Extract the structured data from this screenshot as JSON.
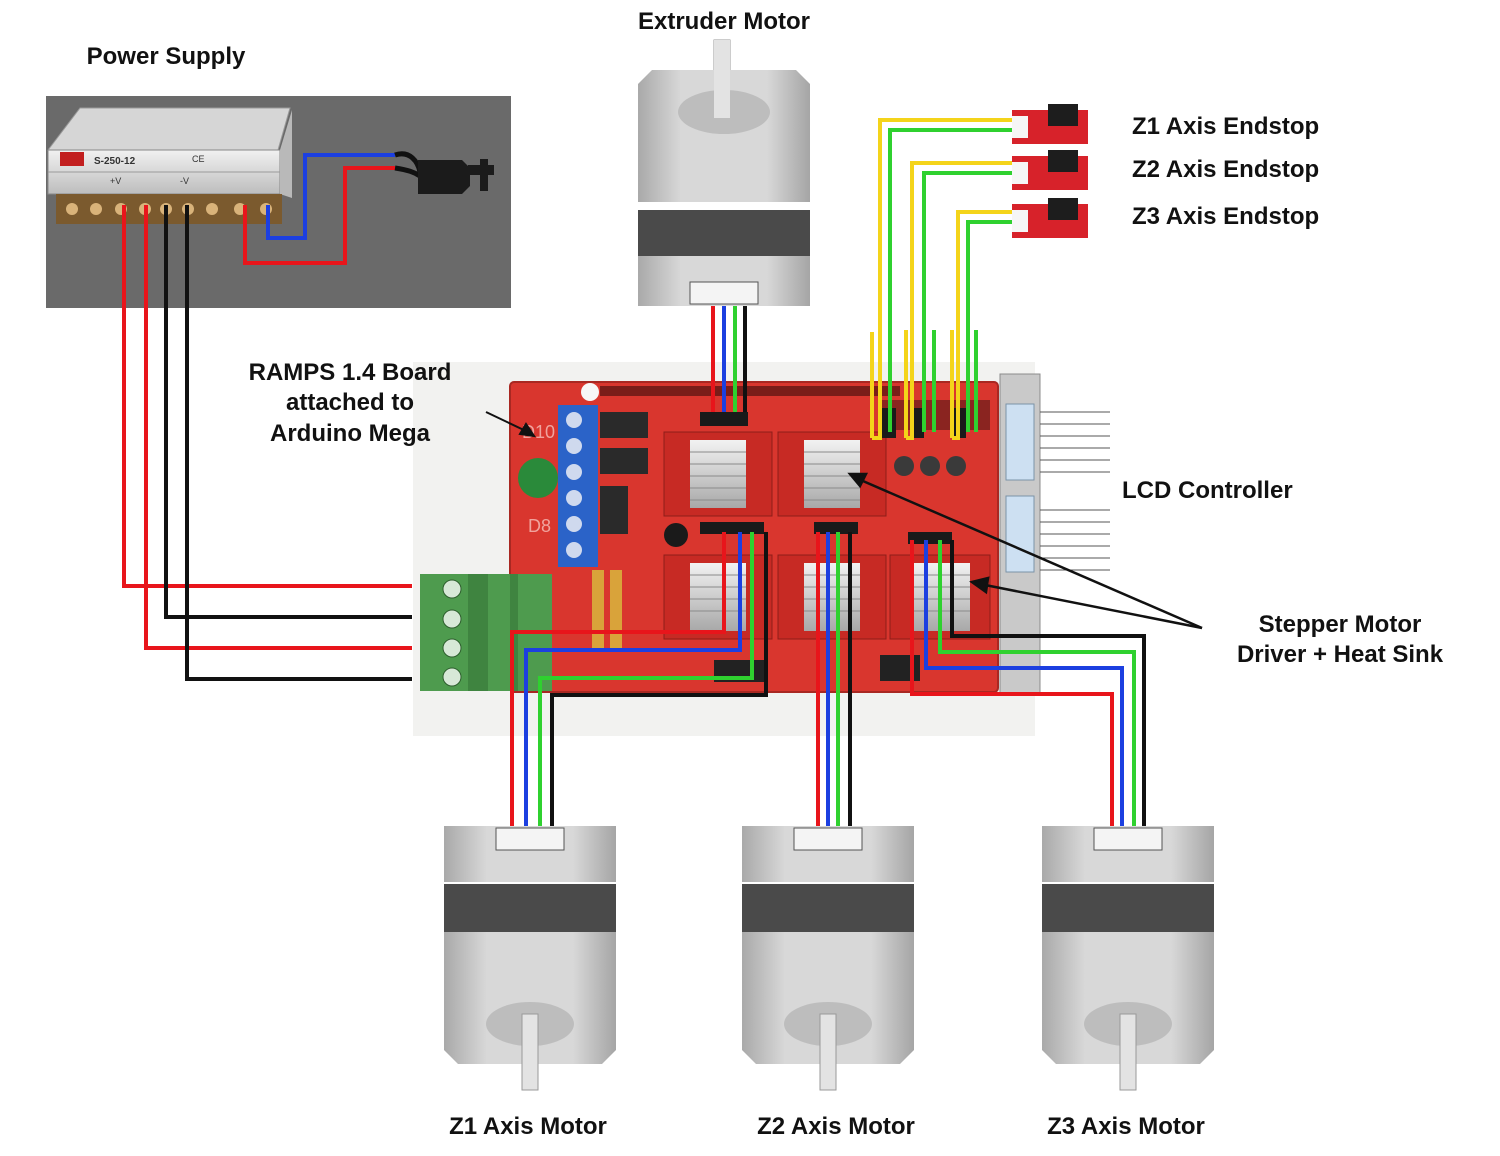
{
  "labels": {
    "power_supply": "Power Supply",
    "extruder_motor": "Extruder Motor",
    "ramps_board": [
      "RAMPS 1.4 Board",
      "attached to",
      "Arduino Mega"
    ],
    "z1_endstop": "Z1 Axis Endstop",
    "z2_endstop": "Z2 Axis Endstop",
    "z3_endstop": "Z3 Axis Endstop",
    "lcd_controller": "LCD Controller",
    "stepper_driver": [
      "Stepper Motor",
      "Driver + Heat Sink"
    ],
    "z1_motor": "Z1 Axis Motor",
    "z2_motor": "Z2 Axis Motor",
    "z3_motor": "Z3 Axis Motor"
  },
  "board_markings": {
    "psu_model": "S-250-12",
    "psu_ce": "CE",
    "psu_plus_v": "+V",
    "psu_minus_v": "-V",
    "ramps_d10": "D10",
    "ramps_d8": "D8"
  },
  "colors": {
    "wire_red": "#e8151b",
    "wire_black": "#111111",
    "wire_blue": "#1c3fe0",
    "wire_green": "#2fd12f",
    "wire_yellow": "#f4d41a",
    "board_red": "#d9362e",
    "terminal_green": "#4e9b4e",
    "terminal_blue": "#2b63c8",
    "endstop_red": "#d7222a",
    "motor_gray": "#c9c9c9",
    "psu_background": "#6a6a6a"
  }
}
